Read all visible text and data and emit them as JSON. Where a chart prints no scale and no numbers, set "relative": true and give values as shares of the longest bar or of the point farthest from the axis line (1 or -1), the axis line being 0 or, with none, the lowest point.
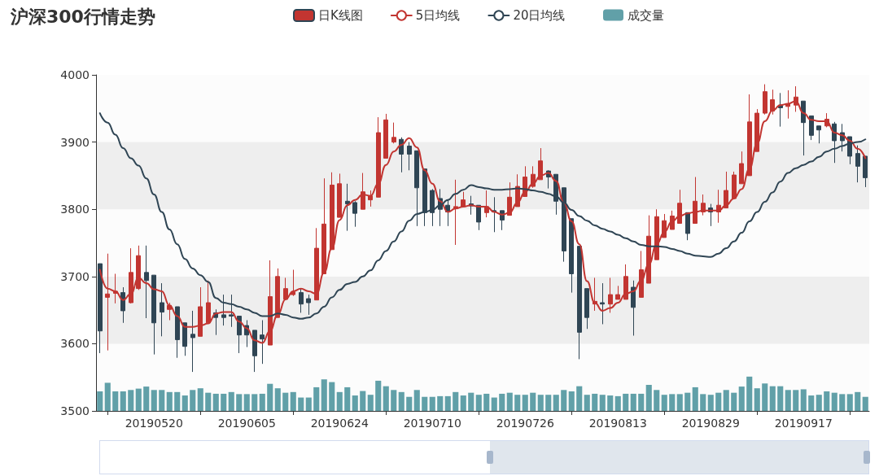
{
  "chart_data": [
    {
      "type": "candlestick",
      "title": "沪深300行情走势",
      "categories": [
        null,
        null,
        null,
        null,
        null,
        null,
        null,
        "20190520",
        null,
        null,
        null,
        null,
        null,
        null,
        null,
        null,
        null,
        null,
        null,
        "20190605",
        null,
        null,
        null,
        null,
        null,
        null,
        null,
        null,
        null,
        null,
        null,
        "20190624",
        null,
        null,
        null,
        null,
        null,
        null,
        null,
        null,
        null,
        null,
        null,
        "20190710",
        null,
        null,
        null,
        null,
        null,
        null,
        null,
        null,
        null,
        null,
        null,
        "20190726",
        null,
        null,
        null,
        null,
        null,
        null,
        null,
        null,
        null,
        null,
        null,
        "20190813",
        null,
        null,
        null,
        null,
        null,
        null,
        null,
        null,
        null,
        null,
        null,
        "20190829",
        null,
        null,
        null,
        null,
        null,
        null,
        null,
        null,
        null,
        null,
        null,
        "20190917",
        null,
        null,
        null,
        null,
        null,
        null,
        null,
        null
      ],
      "ylim": [
        3500,
        4000
      ],
      "yticks": [
        3500,
        3600,
        3700,
        3800,
        3900,
        4000
      ],
      "legend": "top",
      "marker": "none",
      "line_style": "solid",
      "grid": false,
      "series": [
        {
          "name": "日K线图",
          "type": "candlestick",
          "colors": [
            "#2f4554",
            "#c23531",
            "#c23531",
            "#2f4554",
            "#c23531",
            "#c23531",
            "#2f4554",
            "#2f4554",
            "#2f4554",
            "#c23531",
            "#2f4554",
            "#2f4554",
            "#2f4554",
            "#c23531",
            "#c23531",
            "#2f4554",
            "#2f4554",
            "#2f4554",
            "#2f4554",
            "#2f4554",
            "#2f4554",
            "#2f4554",
            "#c23531",
            "#c23531",
            "#c23531",
            "#c23531",
            "#2f4554",
            "#2f4554",
            "#c23531",
            "#c23531",
            "#c23531",
            "#c23531",
            "#2f4554",
            "#2f4554",
            "#c23531",
            "#c23531",
            "#c23531",
            "#c23531",
            "#c23531",
            "#2f4554",
            "#2f4554",
            "#2f4554",
            "#2f4554",
            "#2f4554",
            "#2f4554",
            "#2f4554",
            "#c23531",
            "#c23531",
            "#2f4554",
            "#2f4554",
            "#c23531",
            "#2f4554",
            "#2f4554",
            "#c23531",
            "#c23531",
            "#c23531",
            "#c23531",
            "#c23531",
            "#2f4554",
            "#2f4554",
            "#2f4554",
            "#2f4554",
            "#2f4554",
            "#2f4554",
            "#c23531",
            "#2f4554",
            "#c23531",
            "#c23531",
            "#c23531",
            "#2f4554",
            "#c23531",
            "#c23531",
            "#c23531",
            "#c23531",
            "#c23531",
            "#c23531",
            "#2f4554",
            "#c23531",
            "#c23531",
            "#2f4554",
            "#c23531",
            "#c23531",
            "#c23531",
            "#c23531",
            "#c23531",
            "#c23531",
            "#c23531",
            "#c23531",
            "#2f4554",
            "#c23531",
            "#c23531",
            "#2f4554",
            "#2f4554",
            "#2f4554",
            "#c23531",
            "#2f4554",
            "#2f4554",
            "#2f4554",
            "#2f4554",
            "#2f4554"
          ],
          "ohlc": [
            [
              3719,
              3719,
              3586,
              3619
            ],
            [
              3669,
              3734,
              3590,
              3674
            ],
            [
              3675,
              3704,
              3660,
              3678
            ],
            [
              3676,
              3684,
              3631,
              3649
            ],
            [
              3661,
              3742,
              3660,
              3706
            ],
            [
              3682,
              3746,
              3680,
              3731
            ],
            [
              3706,
              3746,
              3638,
              3694
            ],
            [
              3702,
              3702,
              3584,
              3631
            ],
            [
              3661,
              3690,
              3611,
              3647
            ],
            [
              3651,
              3661,
              3635,
              3657
            ],
            [
              3655,
              3655,
              3579,
              3606
            ],
            [
              3631,
              3631,
              3582,
              3596
            ],
            [
              3614,
              3649,
              3558,
              3609
            ],
            [
              3611,
              3684,
              3611,
              3655
            ],
            [
              3631,
              3694,
              3631,
              3661
            ],
            [
              3646,
              3651,
              3613,
              3639
            ],
            [
              3643,
              3673,
              3627,
              3639
            ],
            [
              3643,
              3673,
              3625,
              3641
            ],
            [
              3641,
              3641,
              3586,
              3613
            ],
            [
              3627,
              3635,
              3595,
              3613
            ],
            [
              3620,
              3620,
              3558,
              3582
            ],
            [
              3613,
              3635,
              3570,
              3607
            ],
            [
              3598,
              3724,
              3598,
              3670
            ],
            [
              3639,
              3712,
              3639,
              3700
            ],
            [
              3666,
              3698,
              3666,
              3682
            ],
            [
              3673,
              3710,
              3671,
              3677
            ],
            [
              3676,
              3682,
              3646,
              3659
            ],
            [
              3667,
              3673,
              3643,
              3661
            ],
            [
              3665,
              3772,
              3665,
              3742
            ],
            [
              3704,
              3846,
              3704,
              3778
            ],
            [
              3740,
              3855,
              3740,
              3836
            ],
            [
              3788,
              3853,
              3788,
              3838
            ],
            [
              3812,
              3838,
              3768,
              3808
            ],
            [
              3810,
              3812,
              3774,
              3794
            ],
            [
              3800,
              3854,
              3800,
              3826
            ],
            [
              3814,
              3828,
              3804,
              3820
            ],
            [
              3818,
              3937,
              3818,
              3914
            ],
            [
              3876,
              3942,
              3876,
              3933
            ],
            [
              3900,
              3929,
              3898,
              3907
            ],
            [
              3904,
              3907,
              3855,
              3882
            ],
            [
              3894,
              3900,
              3858,
              3882
            ],
            [
              3887,
              3887,
              3775,
              3832
            ],
            [
              3860,
              3860,
              3775,
              3795
            ],
            [
              3828,
              3830,
              3775,
              3795
            ],
            [
              3816,
              3830,
              3775,
              3800
            ],
            [
              3806,
              3814,
              3775,
              3796
            ],
            [
              3802,
              3844,
              3747,
              3804
            ],
            [
              3804,
              3826,
              3804,
              3814
            ],
            [
              3808,
              3820,
              3792,
              3805
            ],
            [
              3806,
              3806,
              3769,
              3781
            ],
            [
              3795,
              3828,
              3788,
              3804
            ],
            [
              3798,
              3818,
              3766,
              3796
            ],
            [
              3798,
              3798,
              3769,
              3784
            ],
            [
              3791,
              3840,
              3791,
              3818
            ],
            [
              3804,
              3852,
              3804,
              3834
            ],
            [
              3819,
              3864,
              3819,
              3848
            ],
            [
              3834,
              3864,
              3832,
              3852
            ],
            [
              3844,
              3891,
              3844,
              3872
            ],
            [
              3857,
              3858,
              3831,
              3848
            ],
            [
              3852,
              3852,
              3792,
              3812
            ],
            [
              3832,
              3832,
              3722,
              3738
            ],
            [
              3786,
              3786,
              3676,
              3704
            ],
            [
              3745,
              3745,
              3577,
              3617
            ],
            [
              3682,
              3682,
              3622,
              3639
            ],
            [
              3659,
              3698,
              3649,
              3663
            ],
            [
              3661,
              3690,
              3629,
              3659
            ],
            [
              3659,
              3698,
              3646,
              3673
            ],
            [
              3666,
              3686,
              3666,
              3673
            ],
            [
              3666,
              3718,
              3666,
              3700
            ],
            [
              3684,
              3694,
              3612,
              3654
            ],
            [
              3669,
              3738,
              3669,
              3710
            ],
            [
              3690,
              3791,
              3690,
              3760
            ],
            [
              3725,
              3800,
              3725,
              3789
            ],
            [
              3758,
              3793,
              3758,
              3783
            ],
            [
              3770,
              3798,
              3770,
              3790
            ],
            [
              3779,
              3829,
              3779,
              3809
            ],
            [
              3795,
              3795,
              3754,
              3764
            ],
            [
              3779,
              3848,
              3779,
              3812
            ],
            [
              3796,
              3822,
              3791,
              3809
            ],
            [
              3802,
              3808,
              3775,
              3796
            ],
            [
              3796,
              3829,
              3780,
              3806
            ],
            [
              3802,
              3856,
              3802,
              3828
            ],
            [
              3816,
              3856,
              3816,
              3851
            ],
            [
              3838,
              3886,
              3838,
              3868
            ],
            [
              3850,
              3971,
              3850,
              3930
            ],
            [
              3886,
              3949,
              3886,
              3943
            ],
            [
              3943,
              3986,
              3941,
              3975
            ],
            [
              3946,
              3978,
              3941,
              3963
            ],
            [
              3955,
              3973,
              3923,
              3951
            ],
            [
              3953,
              3977,
              3935,
              3957
            ],
            [
              3955,
              3983,
              3945,
              3967
            ],
            [
              3961,
              3961,
              3880,
              3929
            ],
            [
              3939,
              3939,
              3903,
              3910
            ],
            [
              3924,
              3924,
              3898,
              3918
            ],
            [
              3924,
              3943,
              3922,
              3934
            ],
            [
              3927,
              3930,
              3869,
              3902
            ],
            [
              3914,
              3927,
              3886,
              3902
            ],
            [
              3908,
              3908,
              3867,
              3879
            ],
            [
              3883,
              3895,
              3840,
              3864
            ],
            [
              3879,
              3879,
              3833,
              3847
            ]
          ]
        },
        {
          "name": "5日均线",
          "type": "line",
          "color": "#c23531",
          "values": [
            3710,
            3682,
            3678,
            3665,
            3674,
            3698,
            3690,
            3681,
            3678,
            3657,
            3641,
            3625,
            3625,
            3627,
            3630,
            3645,
            3647,
            3647,
            3633,
            3623,
            3605,
            3601,
            3619,
            3643,
            3666,
            3678,
            3682,
            3678,
            3674,
            3706,
            3742,
            3784,
            3806,
            3814,
            3822,
            3820,
            3838,
            3866,
            3886,
            3896,
            3906,
            3892,
            3858,
            3838,
            3812,
            3796,
            3801,
            3804,
            3806,
            3804,
            3804,
            3796,
            3792,
            3795,
            3810,
            3826,
            3838,
            3850,
            3854,
            3842,
            3810,
            3782,
            3748,
            3693,
            3661,
            3649,
            3653,
            3661,
            3674,
            3678,
            3694,
            3718,
            3748,
            3766,
            3782,
            3790,
            3794,
            3796,
            3798,
            3798,
            3798,
            3806,
            3816,
            3830,
            3860,
            3898,
            3931,
            3947,
            3955,
            3957,
            3961,
            3943,
            3933,
            3931,
            3931,
            3914,
            3910,
            3902,
            3890,
            3876
          ]
        },
        {
          "name": "20日均线",
          "type": "line",
          "color": "#2f4554",
          "values": [
            3943,
            3929,
            3911,
            3891,
            3876,
            3865,
            3846,
            3822,
            3796,
            3770,
            3748,
            3726,
            3712,
            3702,
            3692,
            3668,
            3661,
            3659,
            3655,
            3651,
            3646,
            3641,
            3641,
            3645,
            3643,
            3639,
            3637,
            3639,
            3645,
            3655,
            3669,
            3680,
            3689,
            3692,
            3700,
            3709,
            3724,
            3738,
            3752,
            3767,
            3783,
            3793,
            3796,
            3799,
            3806,
            3814,
            3823,
            3829,
            3836,
            3833,
            3831,
            3829,
            3829,
            3830,
            3831,
            3830,
            3828,
            3826,
            3823,
            3819,
            3810,
            3799,
            3790,
            3783,
            3776,
            3771,
            3767,
            3762,
            3757,
            3752,
            3747,
            3745,
            3745,
            3744,
            3741,
            3738,
            3734,
            3731,
            3730,
            3729,
            3734,
            3742,
            3752,
            3765,
            3782,
            3796,
            3811,
            3825,
            3841,
            3854,
            3861,
            3866,
            3871,
            3878,
            3886,
            3890,
            3894,
            3898,
            3900,
            3904
          ]
        }
      ]
    },
    {
      "type": "bar",
      "relative": true,
      "tick_labels": false,
      "legend": "top",
      "categories": [
        null,
        null,
        null,
        null,
        null,
        null,
        null,
        "20190520",
        null,
        null,
        null,
        null,
        null,
        null,
        null,
        null,
        null,
        null,
        null,
        "20190605",
        null,
        null,
        null,
        null,
        null,
        null,
        null,
        null,
        null,
        null,
        null,
        "20190624",
        null,
        null,
        null,
        null,
        null,
        null,
        null,
        null,
        null,
        null,
        null,
        "20190710",
        null,
        null,
        null,
        null,
        null,
        null,
        null,
        null,
        null,
        null,
        null,
        "20190726",
        null,
        null,
        null,
        null,
        null,
        null,
        null,
        null,
        null,
        null,
        null,
        "20190813",
        null,
        null,
        null,
        null,
        null,
        null,
        null,
        null,
        null,
        null,
        null,
        "20190829",
        null,
        null,
        null,
        null,
        null,
        null,
        null,
        null,
        null,
        null,
        null,
        "20190917",
        null,
        null,
        null,
        null,
        null,
        null,
        null,
        null
      ],
      "series": [
        {
          "name": "成交量",
          "color": "#61a0a8",
          "values": [
            0.57,
            0.82,
            0.57,
            0.57,
            0.61,
            0.65,
            0.71,
            0.61,
            0.61,
            0.55,
            0.55,
            0.45,
            0.61,
            0.66,
            0.53,
            0.5,
            0.5,
            0.55,
            0.49,
            0.49,
            0.49,
            0.5,
            0.79,
            0.66,
            0.53,
            0.55,
            0.39,
            0.39,
            0.69,
            0.92,
            0.84,
            0.55,
            0.69,
            0.45,
            0.58,
            0.47,
            0.88,
            0.72,
            0.61,
            0.55,
            0.41,
            0.61,
            0.41,
            0.41,
            0.43,
            0.43,
            0.55,
            0.45,
            0.53,
            0.47,
            0.5,
            0.39,
            0.5,
            0.53,
            0.47,
            0.47,
            0.53,
            0.47,
            0.47,
            0.47,
            0.61,
            0.57,
            0.72,
            0.47,
            0.5,
            0.47,
            0.45,
            0.43,
            0.5,
            0.5,
            0.5,
            0.76,
            0.61,
            0.47,
            0.49,
            0.49,
            0.53,
            0.69,
            0.49,
            0.47,
            0.53,
            0.61,
            0.53,
            0.71,
            1,
            0.66,
            0.8,
            0.72,
            0.72,
            0.61,
            0.61,
            0.63,
            0.45,
            0.47,
            0.57,
            0.53,
            0.49,
            0.49,
            0.55,
            0.41
          ]
        }
      ]
    }
  ]
}
